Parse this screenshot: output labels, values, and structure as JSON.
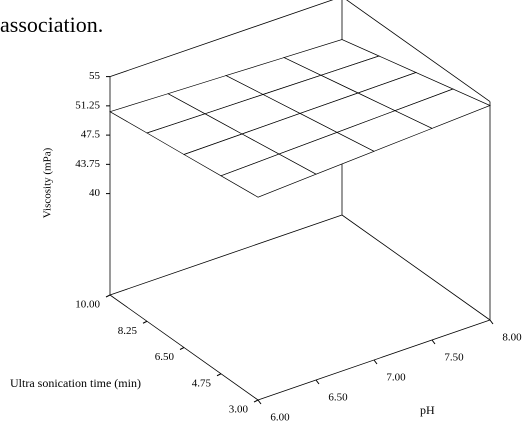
{
  "chart_data": {
    "type": "surface3d",
    "context_text": "association.",
    "x_label": "Ultra sonication time (min)",
    "y_label": "pH",
    "z_label": "Viscosity (mPa)",
    "x": [
      3,
      4.75,
      6.5,
      8.25,
      10
    ],
    "y": [
      6,
      6.5,
      7,
      7.5,
      8
    ],
    "z": [
      [
        53,
        53.38,
        53.75,
        54.13,
        54.5
      ],
      [
        52.38,
        52.59,
        52.81,
        53.03,
        53.25
      ],
      [
        51.75,
        51.81,
        51.88,
        51.94,
        52
      ],
      [
        51.13,
        51.03,
        50.94,
        50.84,
        50.75
      ],
      [
        50.5,
        50.25,
        50,
        49.75,
        49.5
      ]
    ],
    "xlim": [
      3,
      10
    ],
    "ylim": [
      6,
      8
    ],
    "zlim": [
      27,
      55
    ],
    "xticks": [
      {
        "value": 10,
        "label": "10.00"
      },
      {
        "value": 8.25,
        "label": "8.25"
      },
      {
        "value": 6.5,
        "label": "6.50"
      },
      {
        "value": 4.75,
        "label": "4.75"
      },
      {
        "value": 3,
        "label": "3.00"
      }
    ],
    "yticks": [
      {
        "value": 6,
        "label": "6.00"
      },
      {
        "value": 6.5,
        "label": "6.50"
      },
      {
        "value": 7,
        "label": "7.00"
      },
      {
        "value": 7.5,
        "label": "7.50"
      },
      {
        "value": 8,
        "label": "8.00"
      }
    ],
    "zticks": [
      55,
      51.25,
      47.5,
      43.75,
      40
    ],
    "contour_levels": [
      50.6,
      51.6,
      52.6,
      53.6
    ],
    "surface_color": "#ffffff",
    "mesh_color": "#000000",
    "contour_color": "#0000cc"
  }
}
